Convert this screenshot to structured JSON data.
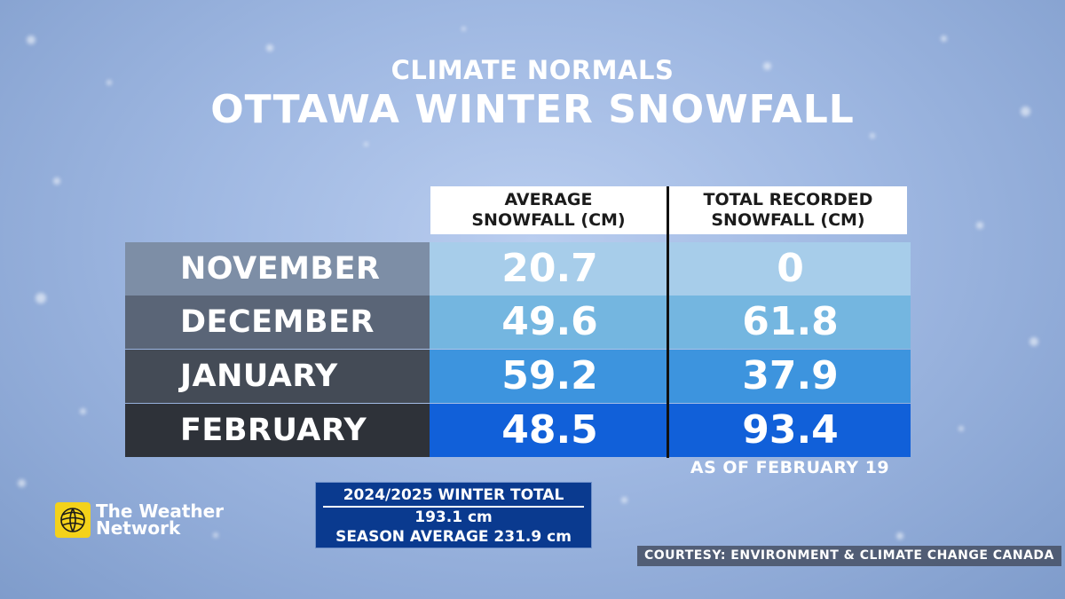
{
  "header": {
    "subtitle": "CLIMATE NORMALS",
    "title": "OTTAWA WINTER SNOWFALL"
  },
  "chart_data": {
    "type": "table",
    "columns": [
      "AVERAGE SNOWFALL (CM)",
      "TOTAL RECORDED SNOWFALL (CM)"
    ],
    "column_lines": [
      [
        "AVERAGE",
        "SNOWFALL (CM)"
      ],
      [
        "TOTAL RECORDED",
        "SNOWFALL (CM)"
      ]
    ],
    "rows": [
      {
        "label": "NOVEMBER",
        "average": "20.7",
        "total": "0"
      },
      {
        "label": "DECEMBER",
        "average": "49.6",
        "total": "61.8"
      },
      {
        "label": "JANUARY",
        "average": "59.2",
        "total": "37.9"
      },
      {
        "label": "FEBRUARY",
        "average": "48.5",
        "total": "93.4"
      }
    ],
    "note": "AS OF FEBRUARY 19"
  },
  "colors": {
    "month_rows": [
      "#7d8ea6",
      "#5a6577",
      "#444b56",
      "#2e3239"
    ],
    "value_rows": [
      "#a7cdea",
      "#74b6e0",
      "#3d94de",
      "#1160d9"
    ]
  },
  "summary": {
    "heading": "2024/2025 WINTER TOTAL",
    "total": "193.1 cm",
    "average": "SEASON AVERAGE 231.9 cm"
  },
  "brand": {
    "line1": "The Weather",
    "line2": "Network",
    "icon": "weather-network-logo-icon"
  },
  "footer": {
    "courtesy": "COURTESY: ENVIRONMENT & CLIMATE CHANGE CANADA"
  }
}
